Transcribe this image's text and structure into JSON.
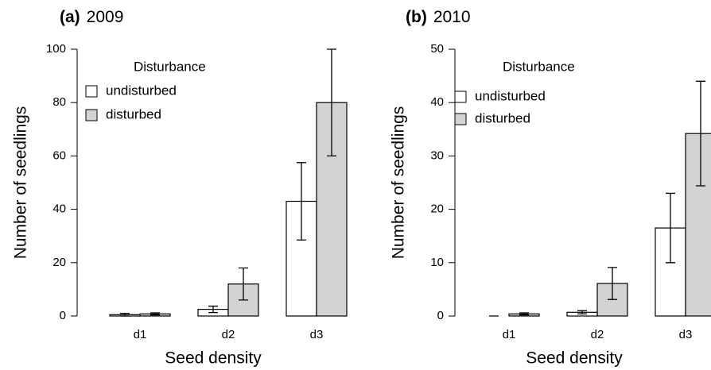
{
  "chart_data": [
    {
      "type": "bar",
      "panel": "(a)",
      "title": "2009",
      "xlabel": "Seed density",
      "ylabel": "Number of seedlings",
      "legend_title": "Disturbance",
      "legend": "upper left",
      "categories": [
        "d1",
        "d2",
        "d3"
      ],
      "series": [
        {
          "name": "undisturbed",
          "color": "#ffffff",
          "values": [
            0.5,
            2.5,
            43
          ],
          "errors": [
            0.5,
            1.2,
            14.5
          ]
        },
        {
          "name": "disturbed",
          "color": "#d3d3d3",
          "values": [
            0.8,
            12,
            80
          ],
          "errors": [
            0.4,
            6,
            20
          ]
        }
      ],
      "ylim": [
        0,
        100
      ],
      "yticks": [
        0,
        20,
        40,
        60,
        80,
        100
      ]
    },
    {
      "type": "bar",
      "panel": "(b)",
      "title": "2010",
      "xlabel": "Seed density",
      "ylabel": "Number of seedlings",
      "legend_title": "Disturbance",
      "legend": "upper left",
      "categories": [
        "d1",
        "d2",
        "d3"
      ],
      "series": [
        {
          "name": "undisturbed",
          "color": "#ffffff",
          "values": [
            0,
            0.7,
            16.5
          ],
          "errors": [
            0,
            0.3,
            6.5
          ]
        },
        {
          "name": "disturbed",
          "color": "#d3d3d3",
          "values": [
            0.4,
            6.1,
            34.2
          ],
          "errors": [
            0.2,
            3,
            9.8
          ]
        }
      ],
      "ylim": [
        0,
        50
      ],
      "yticks": [
        0,
        10,
        20,
        30,
        40,
        50
      ]
    }
  ]
}
